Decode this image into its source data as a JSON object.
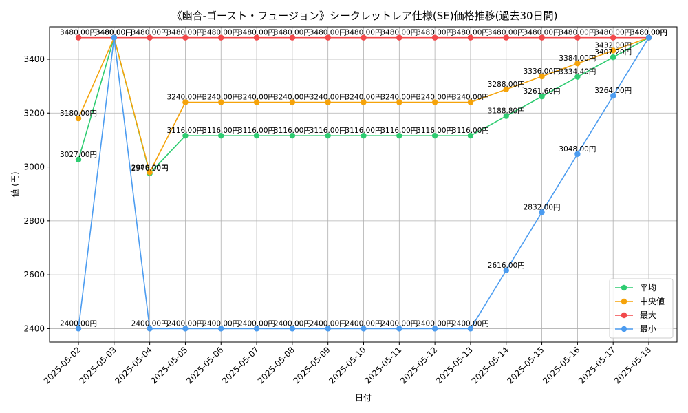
{
  "chart_data": {
    "type": "line",
    "title": "《幽合-ゴースト・フュージョン》シークレットレア仕様(SE)価格推移(過去30日間)",
    "xlabel": "日付",
    "ylabel": "値 (円)",
    "ylim": [
      2350,
      3520
    ],
    "yticks": [
      2400,
      2600,
      2800,
      3000,
      3200,
      3400
    ],
    "grid": true,
    "legend_position": "bottom-right",
    "categories": [
      "2025-05-02",
      "2025-05-03",
      "2025-05-04",
      "2025-05-05",
      "2025-05-06",
      "2025-05-07",
      "2025-05-08",
      "2025-05-09",
      "2025-05-10",
      "2025-05-11",
      "2025-05-12",
      "2025-05-13",
      "2025-05-14",
      "2025-05-15",
      "2025-05-16",
      "2025-05-17",
      "2025-05-18"
    ],
    "value_suffix": "円",
    "series": [
      {
        "name": "平均",
        "color": "#2ecc71",
        "values": [
          3027,
          3480,
          2976,
          3116,
          3116,
          3116,
          3116,
          3116,
          3116,
          3116,
          3116,
          3116,
          3188.8,
          3261.6,
          3334.4,
          3407.2,
          3480
        ]
      },
      {
        "name": "中央値",
        "color": "#f5a30a",
        "values": [
          3180,
          3480,
          2980,
          3240,
          3240,
          3240,
          3240,
          3240,
          3240,
          3240,
          3240,
          3240,
          3288,
          3336,
          3384,
          3432,
          3480
        ]
      },
      {
        "name": "最大",
        "color": "#f2494b",
        "values": [
          3480,
          3480,
          3480,
          3480,
          3480,
          3480,
          3480,
          3480,
          3480,
          3480,
          3480,
          3480,
          3480,
          3480,
          3480,
          3480,
          3480
        ]
      },
      {
        "name": "最小",
        "color": "#4c9cf0",
        "values": [
          2400,
          3480,
          2400,
          2400,
          2400,
          2400,
          2400,
          2400,
          2400,
          2400,
          2400,
          2400,
          2616,
          2832,
          3048,
          3264,
          3480
        ]
      }
    ]
  }
}
